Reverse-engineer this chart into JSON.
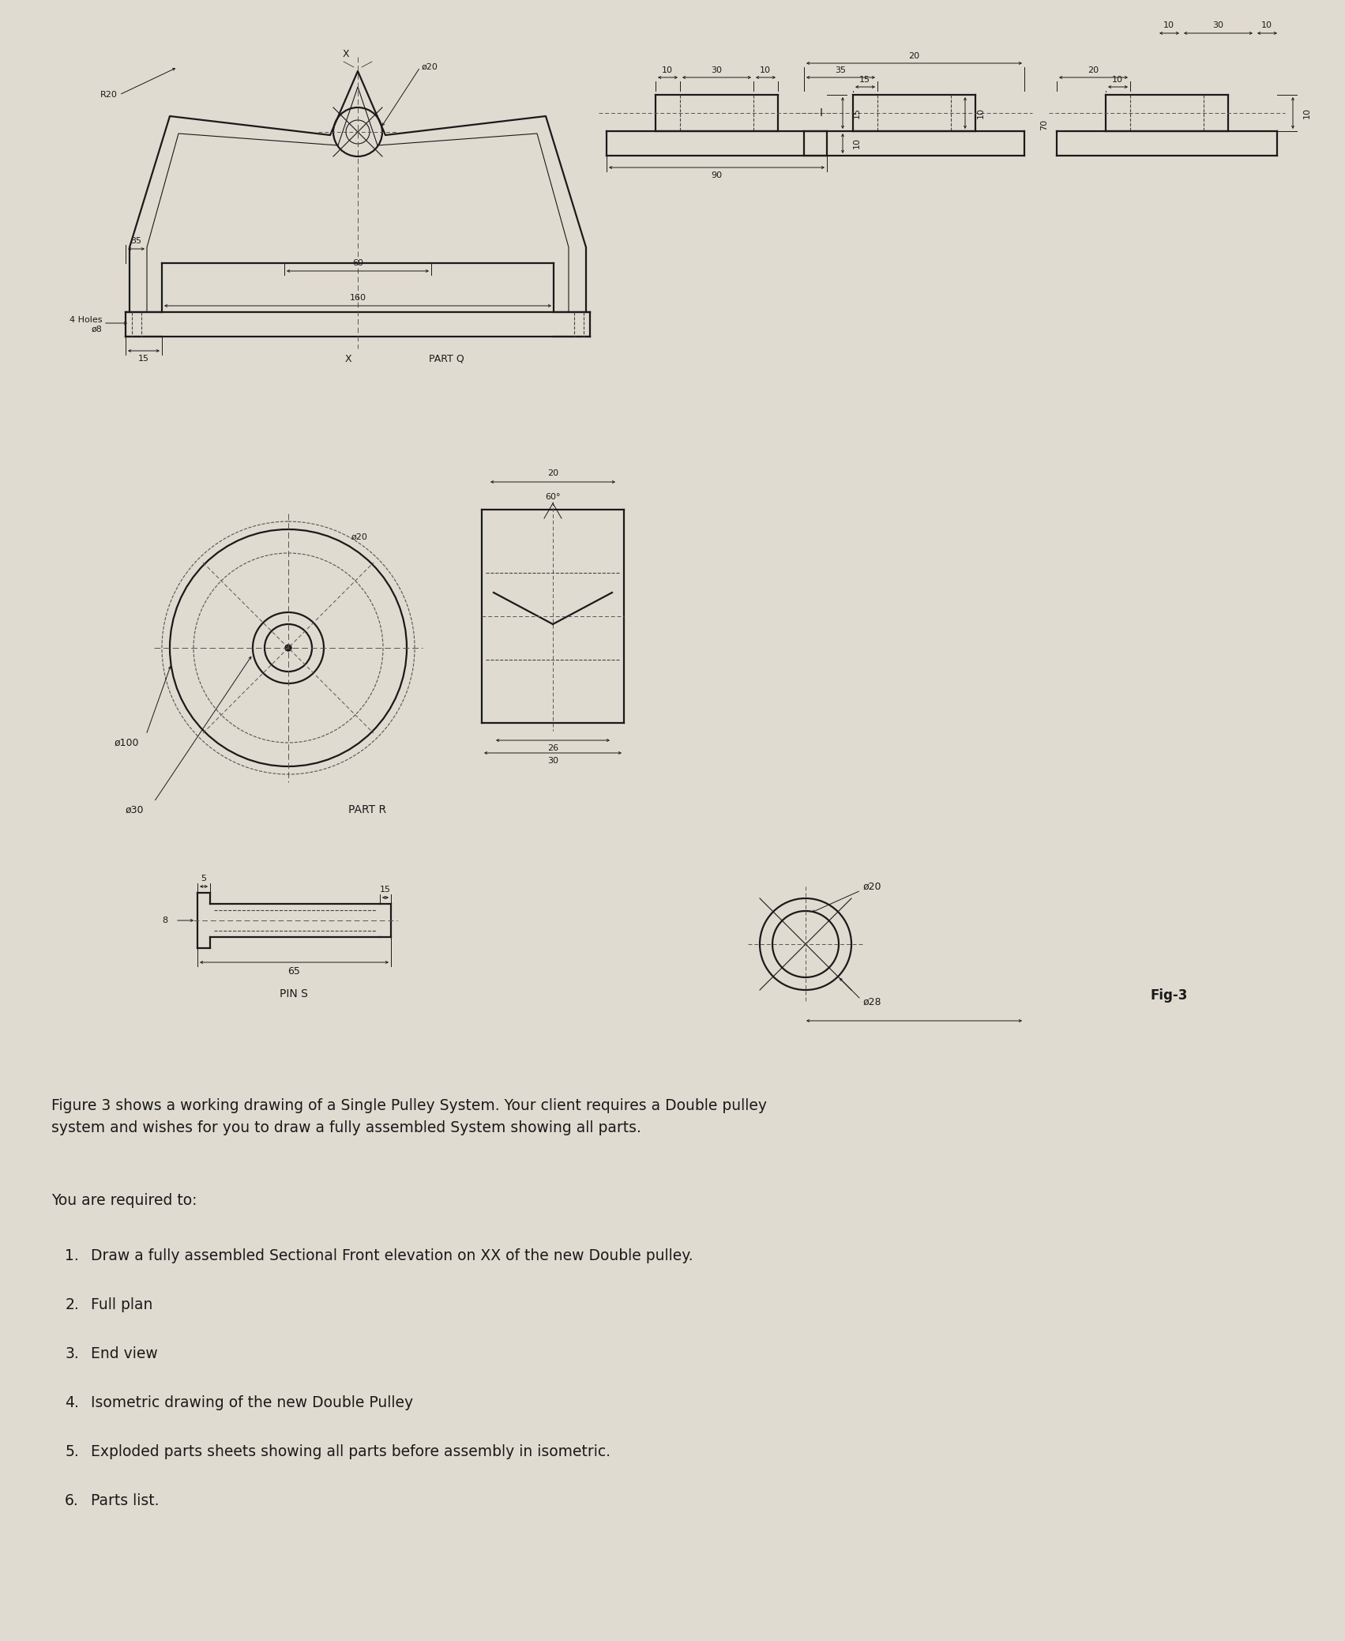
{
  "bg_color": "#e0dbd0",
  "line_color": "#1a1a1a",
  "dim_color": "#1a1a1a",
  "center_color": "#555555",
  "fig_title": "Fig-3",
  "paragraph1": "Figure 3 shows a working drawing of a Single Pulley System. Your client requires a Double pulley\nsystem and wishes for you to draw a fully assembled System showing all parts.",
  "paragraph2": "You are required to:",
  "list_items": [
    "Draw a fully assembled Sectional Front elevation on XX of the new Double pulley.",
    "Full plan",
    "End view",
    "Isometric drawing of the new Double Pulley",
    "Exploded parts sheets showing all parts before assembly in isometric.",
    "Parts list."
  ]
}
